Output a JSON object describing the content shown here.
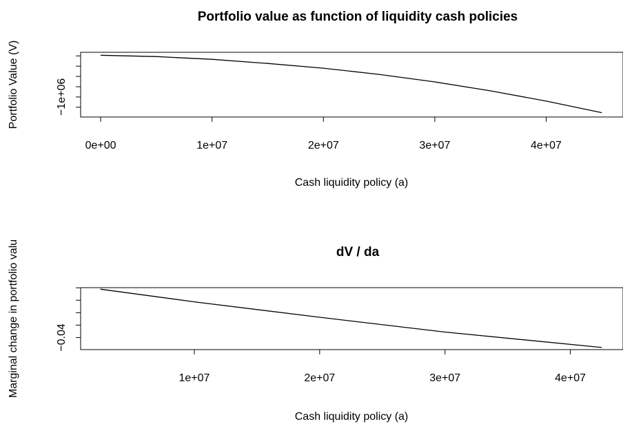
{
  "chart_data": [
    {
      "type": "line",
      "title": "Portfolio value as function of liquidity cash policies",
      "xlabel": "Cash liquidity policy (a)",
      "ylabel": "Portfolio Value (V)",
      "color": "#000000",
      "x": [
        0,
        5000000,
        10000000,
        15000000,
        20000000,
        25000000,
        30000000,
        35000000,
        40000000,
        45000000
      ],
      "values": [
        -187000,
        -213000,
        -267000,
        -347000,
        -440000,
        -560000,
        -707000,
        -880000,
        -1080000,
        -1307000
      ],
      "xlim": [
        -1800000,
        46900000
      ],
      "ylim": [
        -1390000,
        -130000
      ],
      "xticks": [
        {
          "value": 0,
          "label": "0e+00"
        },
        {
          "value": 10000000,
          "label": "1e+07"
        },
        {
          "value": 20000000,
          "label": "2e+07"
        },
        {
          "value": 30000000,
          "label": "3e+07"
        },
        {
          "value": 40000000,
          "label": "4e+07"
        }
      ],
      "yticks": [
        -1200000,
        {
          "value": -1000000,
          "label": "−1e+06"
        },
        -800000,
        -600000,
        -400000,
        -200000
      ]
    },
    {
      "type": "line",
      "title": "dV / da",
      "xlabel": "Cash liquidity policy (a)",
      "ylabel": "Marginal change in portfolio valu",
      "color": "#000000",
      "x": [
        2500000,
        10000000,
        20000000,
        30000000,
        42500000
      ],
      "values": [
        -0.0011,
        -0.0113,
        -0.0237,
        -0.0356,
        -0.048
      ],
      "xlim": [
        930000,
        44200000
      ],
      "ylim": [
        -0.0497,
        0.0001
      ],
      "xticks": [
        {
          "value": 10000000,
          "label": "1e+07"
        },
        {
          "value": 20000000,
          "label": "2e+07"
        },
        {
          "value": 30000000,
          "label": "3e+07"
        },
        {
          "value": 40000000,
          "label": "4e+07"
        }
      ],
      "yticks": [
        {
          "value": -0.04,
          "label": "−0.04"
        },
        -0.03,
        -0.02,
        -0.01,
        0
      ]
    }
  ]
}
